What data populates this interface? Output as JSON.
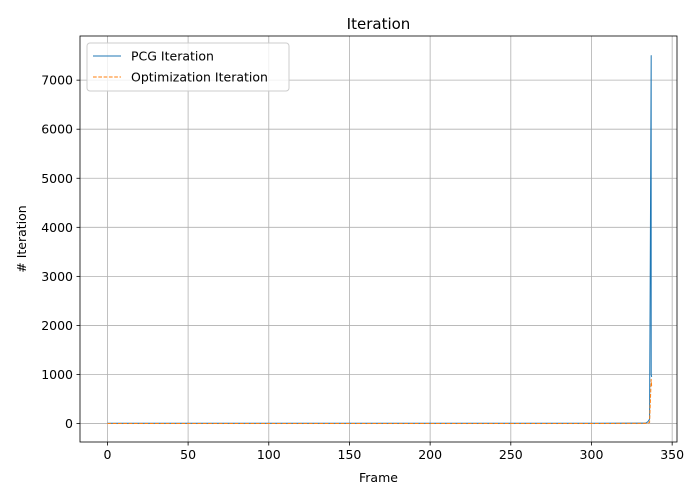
{
  "chart_data": {
    "type": "line",
    "title": "Iteration",
    "xlabel": "Frame",
    "ylabel": "# Iteration",
    "xlim": [
      -17,
      353
    ],
    "ylim": [
      -376,
      7900
    ],
    "xticks": [
      0,
      50,
      100,
      150,
      200,
      250,
      300,
      350
    ],
    "yticks": [
      0,
      1000,
      2000,
      3000,
      4000,
      5000,
      6000,
      7000
    ],
    "grid": true,
    "legend_position": "top-left",
    "series": [
      {
        "name": "PCG Iteration",
        "color": "#1f77b4",
        "style": "solid",
        "x": [
          0,
          50,
          100,
          150,
          200,
          250,
          300,
          333,
          334,
          335,
          336,
          337,
          337,
          337.3
        ],
        "y": [
          5,
          5,
          5,
          5,
          5,
          5,
          5,
          8,
          15,
          40,
          90,
          7500,
          1000,
          950
        ]
      },
      {
        "name": "Optimization Iteration",
        "color": "#ff7f0e",
        "style": "dashed",
        "x": [
          0,
          50,
          100,
          150,
          200,
          250,
          300,
          333,
          334,
          335,
          336,
          337,
          337.3
        ],
        "y": [
          2,
          2,
          2,
          2,
          2,
          2,
          2,
          3,
          5,
          10,
          20,
          900,
          750
        ]
      }
    ]
  }
}
